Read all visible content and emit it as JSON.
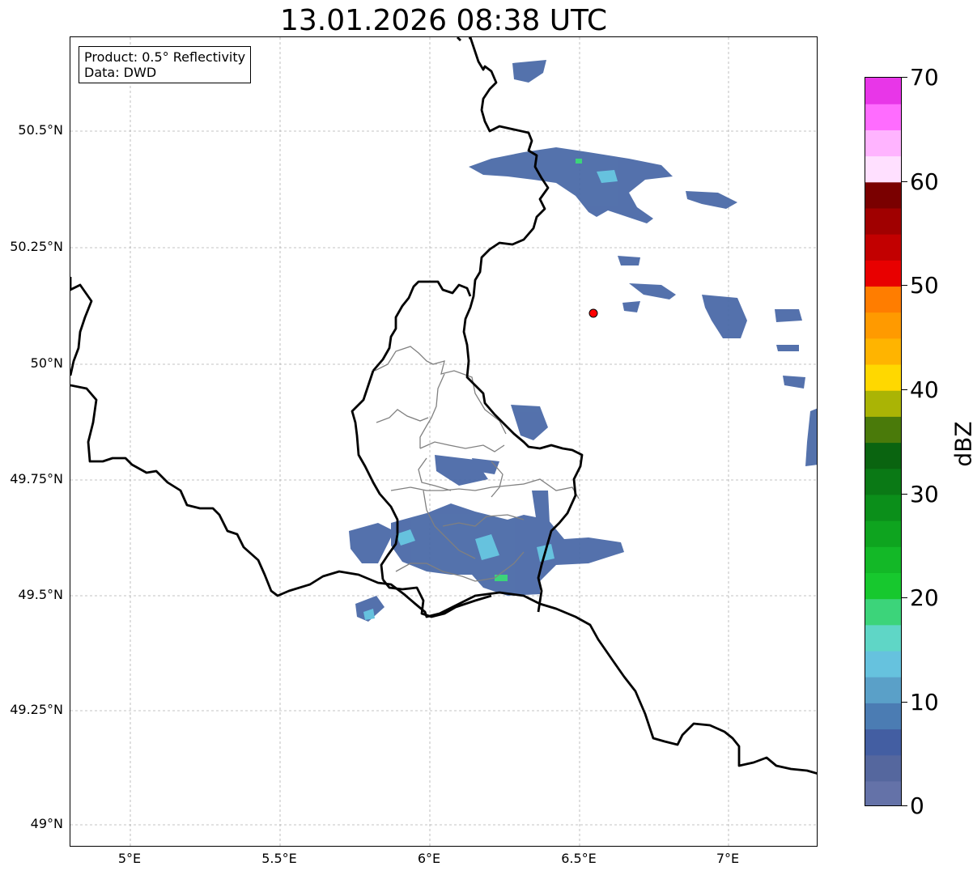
{
  "title": "13.01.2026 08:38 UTC",
  "info": {
    "product": "Product: 0.5° Reflectivity",
    "source": "Data: DWD"
  },
  "axes": {
    "lon_ticks": [
      "5°E",
      "5.5°E",
      "6°E",
      "6.5°E",
      "7°E"
    ],
    "lat_ticks": [
      "50.5°N",
      "50.25°N",
      "50°N",
      "49.75°N",
      "49.5°N",
      "49.25°N",
      "49°N"
    ]
  },
  "colorbar": {
    "label": "dBZ",
    "range": [
      0,
      70
    ],
    "tick_labels": [
      "70",
      "60",
      "50",
      "40",
      "30",
      "20",
      "10",
      "0"
    ],
    "colors": [
      "#6472a8",
      "#55679e",
      "#435ea2",
      "#4b7cb3",
      "#5aa0c8",
      "#66c2de",
      "#5fd6c6",
      "#3cd47a",
      "#17c82e",
      "#13b827",
      "#0ea41f",
      "#0b8f1a",
      "#0a7915",
      "#0a6410",
      "#4a7a0a",
      "#aab405",
      "#ffd800",
      "#ffb400",
      "#ff9a00",
      "#ff7d00",
      "#e80000",
      "#c20000",
      "#a00000",
      "#7a0000",
      "#ffe0ff",
      "#ffb4ff",
      "#ff6cff",
      "#e836e8"
    ]
  },
  "marker": {
    "label": "",
    "color": "#ff0000",
    "lon": 6.548,
    "lat": 50.11
  },
  "colors": {
    "border": "#000000",
    "district": "#808080",
    "grid": "#b0b0b0",
    "echo_main": "#4b6aa8"
  }
}
